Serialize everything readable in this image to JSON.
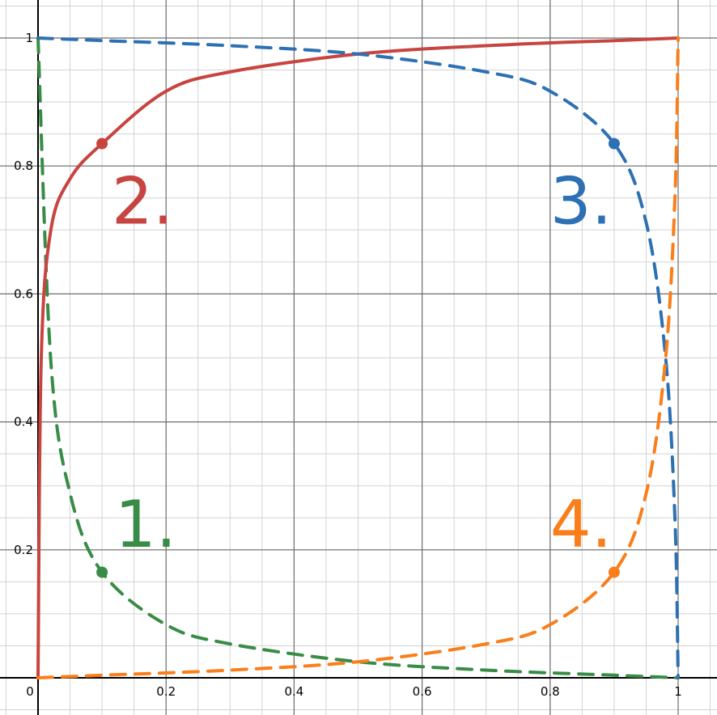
{
  "chart_data": {
    "type": "line",
    "title": "",
    "xlabel": "",
    "ylabel": "",
    "xlim": [
      0,
      1
    ],
    "ylim": [
      0,
      1
    ],
    "grid": true,
    "x_ticks": [
      "0",
      "0.2",
      "0.4",
      "0.6",
      "0.8",
      "1"
    ],
    "y_ticks": [
      "0.2",
      "0.4",
      "0.6",
      "0.8",
      "1"
    ],
    "colors": {
      "green": "#388c46",
      "red": "#c74440",
      "blue": "#2d70b3",
      "orange": "#fa7e19"
    },
    "series": [
      {
        "label": "1.",
        "color": "#388c46",
        "style": "dashed",
        "points": [
          [
            0,
            1
          ],
          [
            0.02,
            0.495
          ],
          [
            0.05,
            0.288
          ],
          [
            0.1,
            0.165
          ],
          [
            0.2,
            0.083
          ],
          [
            0.3,
            0.053
          ],
          [
            0.5,
            0.025
          ],
          [
            0.7,
            0.012
          ],
          [
            0.9,
            0.004
          ],
          [
            1,
            0
          ]
        ],
        "marker": [
          0.1,
          0.165
        ]
      },
      {
        "label": "2.",
        "color": "#c74440",
        "style": "solid",
        "points": [
          [
            0,
            0
          ],
          [
            0.005,
            0.5
          ],
          [
            0.02,
            0.7
          ],
          [
            0.05,
            0.78
          ],
          [
            0.1,
            0.835
          ],
          [
            0.2,
            0.917
          ],
          [
            0.3,
            0.947
          ],
          [
            0.5,
            0.975
          ],
          [
            0.7,
            0.988
          ],
          [
            0.9,
            0.996
          ],
          [
            1,
            1
          ]
        ],
        "marker": [
          0.1,
          0.835
        ]
      },
      {
        "label": "3.",
        "color": "#2d70b3",
        "style": "dashed",
        "points": [
          [
            0,
            1
          ],
          [
            0.1,
            0.996
          ],
          [
            0.3,
            0.988
          ],
          [
            0.5,
            0.975
          ],
          [
            0.7,
            0.947
          ],
          [
            0.8,
            0.917
          ],
          [
            0.9,
            0.835
          ],
          [
            0.95,
            0.712
          ],
          [
            0.98,
            0.505
          ],
          [
            0.995,
            0.25
          ],
          [
            1,
            0
          ]
        ],
        "marker": [
          0.9,
          0.835
        ]
      },
      {
        "label": "4.",
        "color": "#fa7e19",
        "style": "dashed",
        "points": [
          [
            0,
            0
          ],
          [
            0.1,
            0.004
          ],
          [
            0.3,
            0.012
          ],
          [
            0.5,
            0.025
          ],
          [
            0.7,
            0.053
          ],
          [
            0.8,
            0.083
          ],
          [
            0.9,
            0.165
          ],
          [
            0.95,
            0.288
          ],
          [
            0.98,
            0.495
          ],
          [
            0.995,
            0.75
          ],
          [
            1,
            1
          ]
        ],
        "marker": [
          0.9,
          0.165
        ]
      }
    ]
  }
}
